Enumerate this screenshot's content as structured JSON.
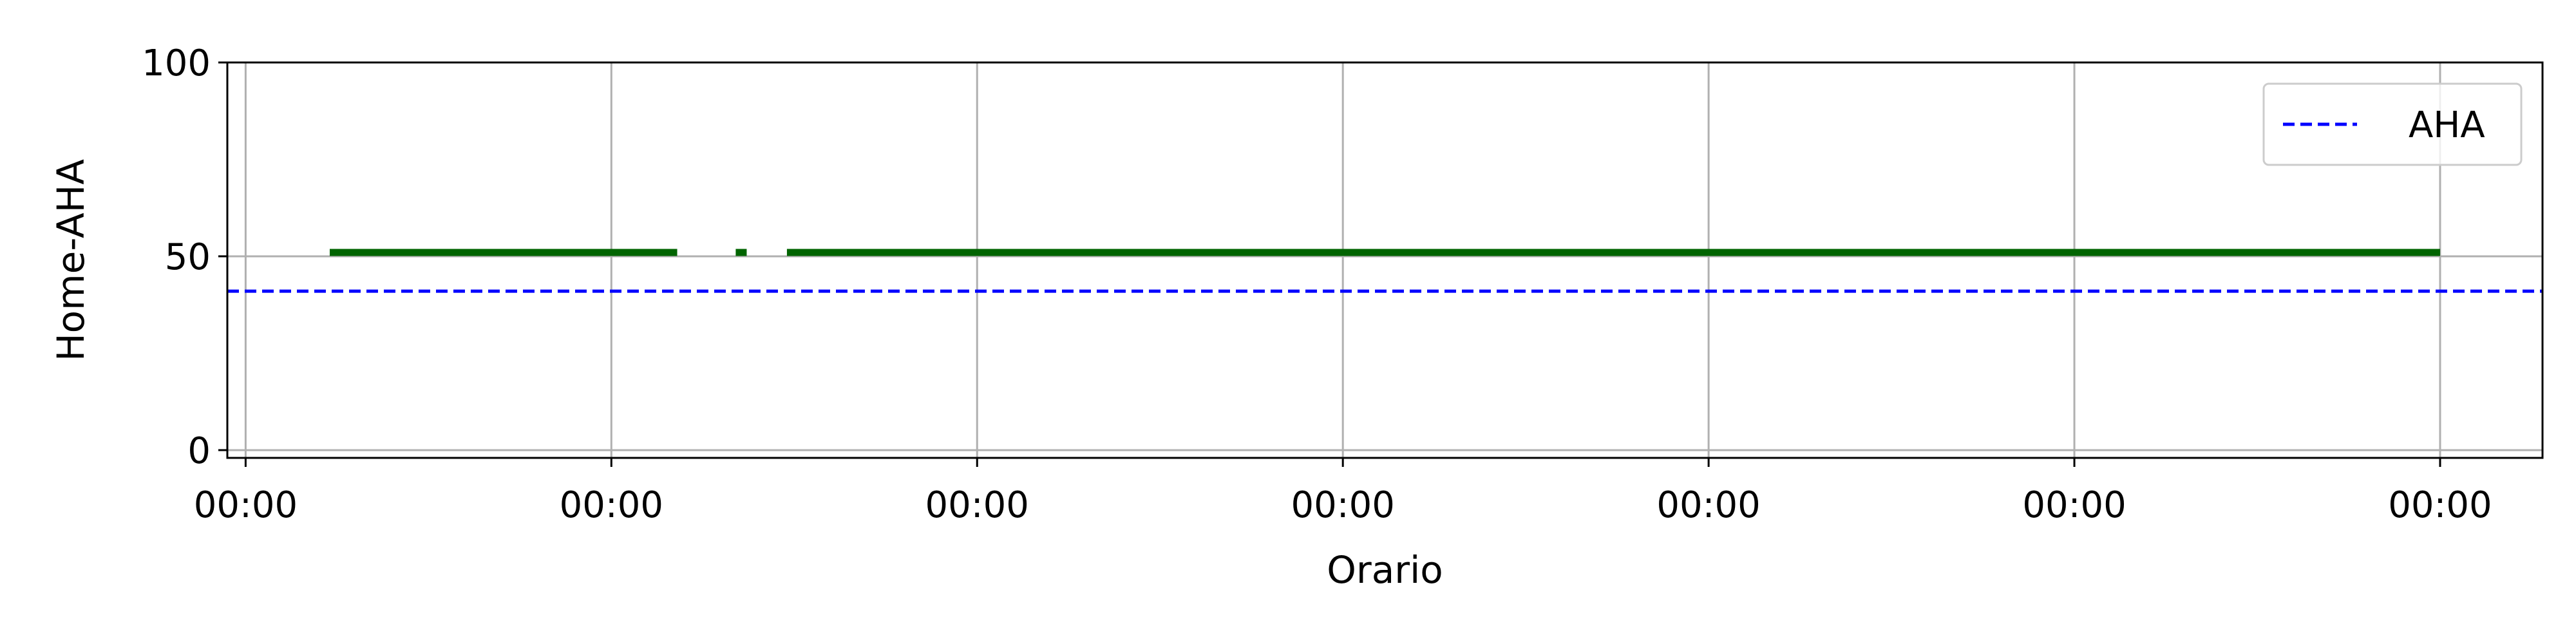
{
  "chart_data": {
    "type": "line",
    "title": "",
    "xlabel": "Orario",
    "ylabel": "Home-AHA",
    "xlim": [
      -0.05,
      6.28
    ],
    "ylim": [
      -2,
      100
    ],
    "x_ticks": [
      0,
      1,
      2,
      3,
      4,
      5,
      6
    ],
    "x_tick_labels": [
      "00:00",
      "00:00",
      "00:00",
      "00:00",
      "00:00",
      "00:00",
      "00:00"
    ],
    "y_ticks": [
      0,
      50,
      100
    ],
    "y_tick_labels": [
      "0",
      "50",
      "100"
    ],
    "grid": true,
    "legend_position": "top-right",
    "colors": {
      "home_aha": "#006400",
      "aha": "#0000ff",
      "grid": "#b0b0b0"
    },
    "series": [
      {
        "style": "solid",
        "color": "#006400",
        "segments": [
          {
            "x": [
              0.23,
              1.18
            ],
            "y": [
              51,
              51
            ]
          },
          {
            "x": [
              1.34,
              1.37
            ],
            "y": [
              51,
              51
            ]
          },
          {
            "x": [
              1.48,
              6.0
            ],
            "y": [
              51,
              51
            ]
          }
        ]
      },
      {
        "name": "AHA",
        "style": "dashed",
        "color": "#0000ff",
        "segments": [
          {
            "x": [
              -0.05,
              6.28
            ],
            "y": [
              41,
              41
            ]
          }
        ]
      }
    ]
  }
}
